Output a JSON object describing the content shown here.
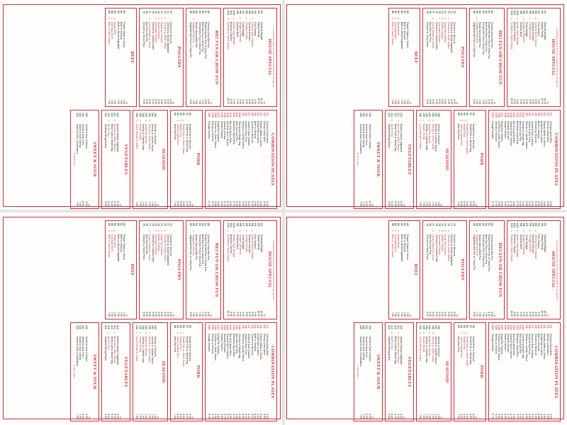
{
  "page": {
    "panels": [
      "top-left",
      "top-right",
      "bottom-left",
      "bottom-right"
    ]
  },
  "menu": {
    "top_note": "Combination plates are served with pork fried rice & egg roll",
    "house_special": {
      "title": "HOUSE SPECIAL",
      "header_item": "",
      "header_price": "Plt",
      "items": [
        {
          "code": "H1",
          "name": "Seafood Delight",
          "price": "10.25",
          "hot": false
        },
        {
          "code": "H2",
          "name": "Happy Family",
          "price": "10.25",
          "hot": false
        },
        {
          "code": "H3",
          "name": "Four Season",
          "price": "9.95",
          "hot": false
        },
        {
          "code": "H4",
          "name": "General Tso's Chicken",
          "price": "8.95",
          "hot": true
        },
        {
          "code": "H5",
          "name": "Sesame Chicken",
          "price": "8.95",
          "hot": false
        },
        {
          "code": "H6",
          "name": "Orange Chicken",
          "price": "8.95",
          "hot": true
        },
        {
          "code": "H7",
          "name": "Triple Delight",
          "price": "9.95",
          "hot": false
        },
        {
          "code": "H8",
          "name": "Dragon & Phoenix",
          "price": "9.95",
          "hot": true
        },
        {
          "code": "H9",
          "name": "Sesame Beef",
          "price": "9.95",
          "hot": false
        },
        {
          "code": "H10",
          "name": "Hunan Triple Delight",
          "price": "9.95",
          "hot": true
        },
        {
          "code": "H11",
          "name": "Bourbon Chicken",
          "price": "8.95",
          "hot": false
        },
        {
          "code": "H12",
          "name": "Scallops w. Garlic Sauce",
          "price": "10.25",
          "hot": true
        }
      ]
    },
    "mei_fun": {
      "title": "MEI FUN OR CHOW FUN",
      "header_item": "",
      "header_price": "Qt",
      "items": [
        {
          "code": "60",
          "name": "Chicken Chow Mei Fun",
          "price": "6.95",
          "hot": false
        },
        {
          "code": "61",
          "name": "Roast Pork Mei Fun or Chow Fun",
          "price": "6.95",
          "hot": false
        },
        {
          "code": "62",
          "name": "Beef Mei Fun or Chow Fun",
          "price": "7.25",
          "hot": false
        },
        {
          "code": "63",
          "name": "Shrimp Mei Fun or Chow Fun",
          "price": "7.50",
          "hot": false
        },
        {
          "code": "64",
          "name": "House Special Mei Fun",
          "price": "7.50",
          "hot": false
        },
        {
          "code": "65",
          "name": "Singapore Mei Fun",
          "price": "7.25",
          "hot": true
        },
        {
          "code": "66",
          "name": "Vegetable Mei Fun or Chow Fun",
          "price": "6.50",
          "hot": false
        }
      ]
    },
    "poultry": {
      "title": "POULTRY",
      "header_item": "",
      "header_price": "Qt",
      "items": [
        {
          "code": "70",
          "name": "Chicken w. Broccoli",
          "price": "6.95",
          "hot": false
        },
        {
          "code": "71",
          "name": "Chicken w. Mixed Vegetable",
          "price": "6.95",
          "hot": false
        },
        {
          "code": "72",
          "name": "Chicken w. Garlic Sauce",
          "price": "6.95",
          "hot": true
        },
        {
          "code": "73",
          "name": "Kung Pao Chicken",
          "price": "6.95",
          "hot": true
        },
        {
          "code": "74",
          "name": "Hunan Chicken",
          "price": "6.95",
          "hot": true
        },
        {
          "code": "75",
          "name": "Szechuan Chicken",
          "price": "6.95",
          "hot": true
        },
        {
          "code": "76",
          "name": "Chicken w. Cashew Nuts",
          "price": "6.95",
          "hot": false
        },
        {
          "code": "77",
          "name": "Curry Chicken w. Onion",
          "price": "6.95",
          "hot": true
        },
        {
          "code": "78",
          "name": "Moo Goo Gai Pan",
          "price": "6.95",
          "hot": false
        },
        {
          "code": "79",
          "name": "Chicken w. Snow Peas",
          "price": "6.95",
          "hot": false
        }
      ]
    },
    "beef": {
      "title": "BEEF",
      "header_item": "",
      "header_price": "Qt",
      "items": [
        {
          "code": "80",
          "name": "Pepper Steak w. Onion",
          "price": "7.50",
          "hot": false
        },
        {
          "code": "81",
          "name": "Beef w. Broccoli",
          "price": "7.50",
          "hot": false
        },
        {
          "code": "82",
          "name": "Beef w. Mixed Vegetable",
          "price": "7.50",
          "hot": false
        },
        {
          "code": "83",
          "name": "Hunan Beef",
          "price": "7.50",
          "hot": true
        },
        {
          "code": "84",
          "name": "Szechuan Beef",
          "price": "7.50",
          "hot": true
        },
        {
          "code": "85",
          "name": "Beef w. Garlic Sauce",
          "price": "7.50",
          "hot": true
        }
      ]
    },
    "combination": {
      "title": "COMBINATION PLATES",
      "header_item": "",
      "header_price": "",
      "items": [
        {
          "code": "C1",
          "name": "Chicken Chow Mein",
          "price": "6.25"
        },
        {
          "code": "C2",
          "name": "Shrimp Chow Mein",
          "price": "6.50"
        },
        {
          "code": "C3",
          "name": "Pepper Steak w. Onion",
          "price": "6.50"
        },
        {
          "code": "C4",
          "name": "Roast Pork Lo Mein",
          "price": "6.25"
        },
        {
          "code": "C5",
          "name": "Beef w. Broccoli",
          "price": "6.50"
        },
        {
          "code": "C6",
          "name": "Chicken w. Broccoli",
          "price": "6.25"
        },
        {
          "code": "C7",
          "name": "Sweet & Sour Chicken",
          "price": "6.25"
        },
        {
          "code": "C8",
          "name": "Sweet & Sour Pork",
          "price": "6.25"
        },
        {
          "code": "C9",
          "name": "Shrimp w. Lobster Sauce",
          "price": "6.50"
        },
        {
          "code": "C10",
          "name": "Chicken w. Mixed Veg.",
          "price": "6.25"
        },
        {
          "code": "C11",
          "name": "Moo Goo Gai Pan",
          "price": "6.25"
        },
        {
          "code": "C12",
          "name": "Boneless Spare Ribs",
          "price": "6.75"
        },
        {
          "code": "C13",
          "name": "Bar-B-Q Spare Ribs",
          "price": "6.95"
        },
        {
          "code": "C14",
          "name": "General Tso's Chicken",
          "price": "6.75"
        },
        {
          "code": "C15",
          "name": "Sesame Chicken",
          "price": "6.75"
        },
        {
          "code": "C16",
          "name": "Hunan Chicken",
          "price": "6.50"
        },
        {
          "code": "C17",
          "name": "Kung Pao Chicken",
          "price": "6.50"
        },
        {
          "code": "C18",
          "name": "Chicken w. Garlic Sauce",
          "price": "6.50"
        },
        {
          "code": "C19",
          "name": "Shrimp w. Broccoli",
          "price": "6.75"
        },
        {
          "code": "C20",
          "name": "Orange Chicken",
          "price": "6.75"
        }
      ]
    },
    "pork": {
      "title": "PORK",
      "header_item": "",
      "header_price": "Qt",
      "items": [
        {
          "code": "90",
          "name": "Roast Pork w. Broccoli",
          "price": "6.95",
          "hot": false
        },
        {
          "code": "91",
          "name": "Roast Pork w. Mixed Veg.",
          "price": "6.95",
          "hot": false
        },
        {
          "code": "92",
          "name": "Roast Pork w. Garlic Sauce",
          "price": "6.95",
          "hot": true
        },
        {
          "code": "93",
          "name": "Hunan Pork",
          "price": "6.95",
          "hot": true
        },
        {
          "code": "94",
          "name": "Twice Cooked Pork",
          "price": "6.95",
          "hot": true
        },
        {
          "code": "95",
          "name": "Moo Shu Pork",
          "price": "7.25",
          "hot": false
        }
      ]
    },
    "seafood": {
      "title": "SEAFOOD",
      "header_item": "",
      "header_price": "Qt",
      "items": [
        {
          "code": "100",
          "name": "Shrimp w. Broccoli",
          "price": "7.95",
          "hot": false
        },
        {
          "code": "101",
          "name": "Shrimp w. Lobster Sauce",
          "price": "7.95",
          "hot": false
        },
        {
          "code": "102",
          "name": "Shrimp w. Garlic Sauce",
          "price": "7.95",
          "hot": true
        },
        {
          "code": "103",
          "name": "Kung Pao Shrimp",
          "price": "7.95",
          "hot": true
        },
        {
          "code": "104",
          "name": "Shrimp w. Cashew Nuts",
          "price": "7.95",
          "hot": false
        },
        {
          "code": "105",
          "name": "Hunan Shrimp",
          "price": "7.95",
          "hot": true
        },
        {
          "code": "106",
          "name": "Curry Shrimp w. Onion",
          "price": "7.95",
          "hot": true
        }
      ]
    },
    "vegetables": {
      "title": "VEGETABLES",
      "header_item": "",
      "header_price": "Qt",
      "items": [
        {
          "code": "110",
          "name": "Mixed Chinese Vegetable",
          "price": "6.25",
          "hot": false
        },
        {
          "code": "111",
          "name": "Broccoli w. Garlic Sauce",
          "price": "6.25",
          "hot": true
        },
        {
          "code": "112",
          "name": "Bean Curd w. Mixed Veg.",
          "price": "6.25",
          "hot": false
        },
        {
          "code": "113",
          "name": "Ma Po Tofu",
          "price": "6.25",
          "hot": true
        },
        {
          "code": "114",
          "name": "Sauteed String Beans",
          "price": "6.50",
          "hot": false
        }
      ]
    },
    "sweet_sour": {
      "title": "SWEET & SOUR",
      "header_item": "",
      "header_price": "Qt",
      "items": [
        {
          "code": "120",
          "name": "Sweet & Sour Chicken",
          "price": "6.95",
          "hot": false
        },
        {
          "code": "121",
          "name": "Sweet & Sour Pork",
          "price": "6.95",
          "hot": false
        },
        {
          "code": "122",
          "name": "Sweet & Sour Shrimp",
          "price": "7.95",
          "hot": false
        },
        {
          "code": "123",
          "name": "Sweet & Sour Combination",
          "price": "7.95",
          "hot": false
        }
      ]
    },
    "hot_note": "Hot & Spicy"
  }
}
